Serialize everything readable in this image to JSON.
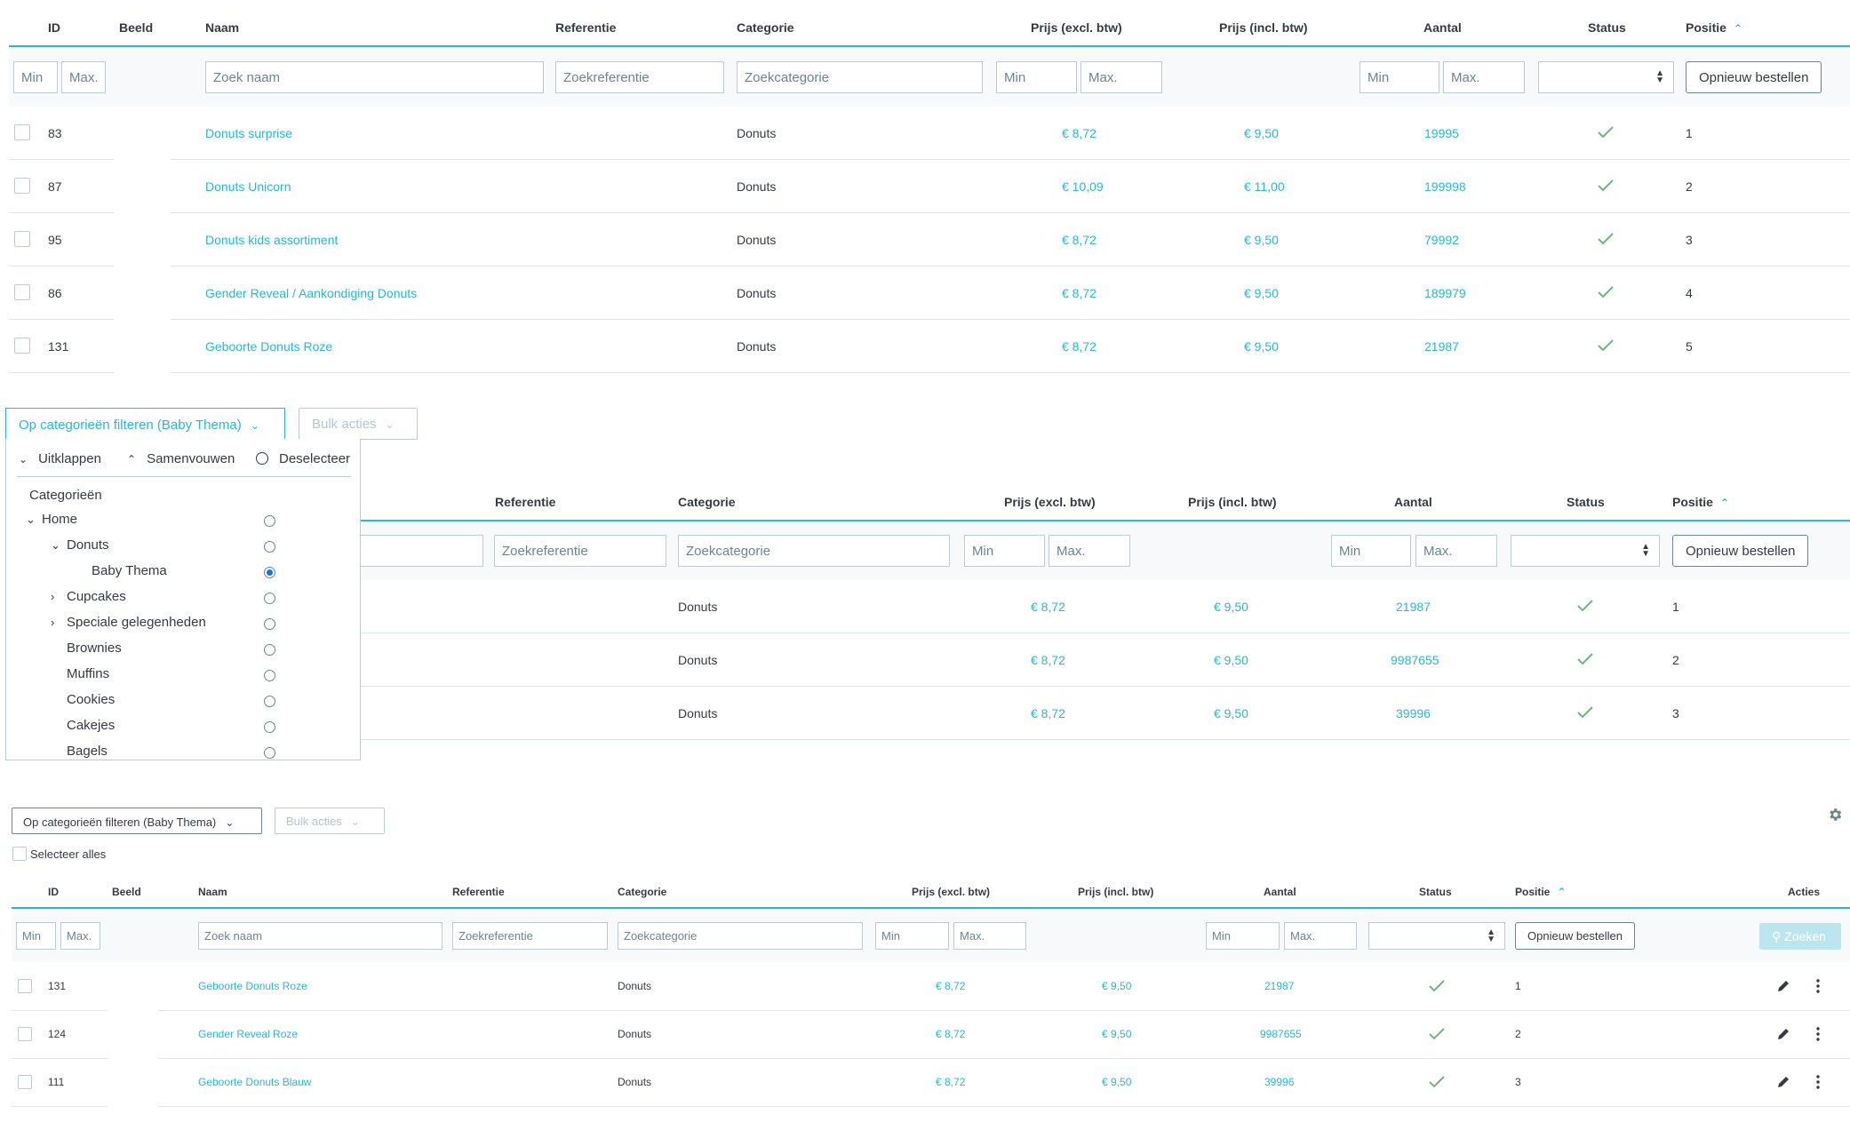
{
  "headers": {
    "id": "ID",
    "image": "Beeld",
    "name": "Naam",
    "reference": "Referentie",
    "category": "Categorie",
    "price_excl": "Prijs (excl. btw)",
    "price_incl": "Prijs (incl. btw)",
    "quantity": "Aantal",
    "status": "Status",
    "position": "Positie",
    "actions": "Acties"
  },
  "filters": {
    "min": "Min",
    "max": "Max.",
    "name_placeholder": "Zoek naam",
    "reference_placeholder": "Zoekreferentie",
    "category_placeholder": "Zoekcategorie",
    "reorder_label": "Opnieuw bestellen",
    "search_label": "Zoeken"
  },
  "table1": {
    "rows": [
      {
        "id": "83",
        "name": "Donuts surprise",
        "category": "Donuts",
        "price_excl": "€ 8,72",
        "price_incl": "€ 9,50",
        "quantity": "19995",
        "position": "1"
      },
      {
        "id": "87",
        "name": "Donuts Unicorn",
        "category": "Donuts",
        "price_excl": "€ 10,09",
        "price_incl": "€ 11,00",
        "quantity": "199998",
        "position": "2"
      },
      {
        "id": "95",
        "name": "Donuts kids assortiment",
        "category": "Donuts",
        "price_excl": "€ 8,72",
        "price_incl": "€ 9,50",
        "quantity": "79992",
        "position": "3"
      },
      {
        "id": "86",
        "name": "Gender Reveal / Aankondiging Donuts",
        "category": "Donuts",
        "price_excl": "€ 8,72",
        "price_incl": "€ 9,50",
        "quantity": "189979",
        "position": "4"
      },
      {
        "id": "131",
        "name": "Geboorte Donuts Roze",
        "category": "Donuts",
        "price_excl": "€ 8,72",
        "price_incl": "€ 9,50",
        "quantity": "21987",
        "position": "5"
      }
    ]
  },
  "toolbar": {
    "category_filter_label": "Op categorieën filteren (Baby Thema)",
    "bulk_actions_label": "Bulk acties",
    "select_all_label": "Selecteer alles"
  },
  "tree": {
    "expand_label": "Uitklappen",
    "collapse_label": "Samenvouwen",
    "deselect_label": "Deselecteer",
    "title": "Categorieën",
    "items": [
      {
        "label": "Home",
        "selected": false
      },
      {
        "label": "Donuts",
        "selected": false
      },
      {
        "label": "Baby Thema",
        "selected": true
      },
      {
        "label": "Cupcakes",
        "selected": false
      },
      {
        "label": "Speciale gelegenheden",
        "selected": false
      },
      {
        "label": "Brownies",
        "selected": false
      },
      {
        "label": "Muffins",
        "selected": false
      },
      {
        "label": "Cookies",
        "selected": false
      },
      {
        "label": "Cakejes",
        "selected": false
      },
      {
        "label": "Bagels",
        "selected": false
      }
    ]
  },
  "table2": {
    "rows": [
      {
        "category": "Donuts",
        "price_excl": "€ 8,72",
        "price_incl": "€ 9,50",
        "quantity": "21987",
        "position": "1"
      },
      {
        "category": "Donuts",
        "price_excl": "€ 8,72",
        "price_incl": "€ 9,50",
        "quantity": "9987655",
        "position": "2"
      },
      {
        "category": "Donuts",
        "price_excl": "€ 8,72",
        "price_incl": "€ 9,50",
        "quantity": "39996",
        "position": "3"
      }
    ]
  },
  "table3": {
    "rows": [
      {
        "id": "131",
        "name": "Geboorte Donuts Roze",
        "category": "Donuts",
        "price_excl": "€ 8,72",
        "price_incl": "€ 9,50",
        "quantity": "21987",
        "position": "1"
      },
      {
        "id": "124",
        "name": "Gender Reveal Roze",
        "category": "Donuts",
        "price_excl": "€ 8,72",
        "price_incl": "€ 9,50",
        "quantity": "9987655",
        "position": "2"
      },
      {
        "id": "111",
        "name": "Geboorte Donuts Blauw",
        "category": "Donuts",
        "price_excl": "€ 8,72",
        "price_incl": "€ 9,50",
        "quantity": "39996",
        "position": "3"
      }
    ]
  },
  "colors": {
    "accent": "#25b9d7",
    "status_ok": "#70b580",
    "text": "#363a41",
    "border": "#bbcdd2"
  },
  "icons": [
    "chevron-down-icon",
    "chevron-up-icon",
    "chevron-right-icon",
    "check-icon",
    "gear-icon",
    "search-icon",
    "pencil-icon",
    "more-vertical-icon",
    "sort-up-icon"
  ]
}
